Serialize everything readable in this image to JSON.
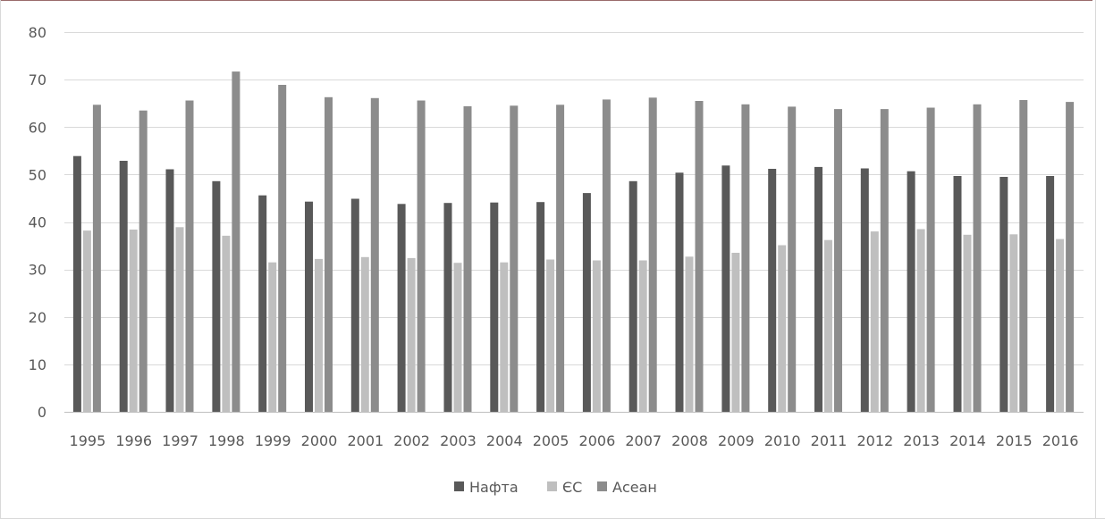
{
  "chart_data": {
    "type": "bar",
    "title": "",
    "xlabel": "",
    "ylabel": "",
    "ylim": [
      0,
      80
    ],
    "yticks": [
      0,
      10,
      20,
      30,
      40,
      50,
      60,
      70,
      80
    ],
    "grid": true,
    "legend_position": "bottom",
    "categories": [
      "1995",
      "1996",
      "1997",
      "1998",
      "1999",
      "2000",
      "2001",
      "2002",
      "2003",
      "2004",
      "2005",
      "2006",
      "2007",
      "2008",
      "2009",
      "2010",
      "2011",
      "2012",
      "2013",
      "2014",
      "2015",
      "2016"
    ],
    "series": [
      {
        "name": "Нафта",
        "color": "#595959",
        "values": [
          53.9,
          52.9,
          51.1,
          48.6,
          45.6,
          44.3,
          44.9,
          43.8,
          44.0,
          44.1,
          44.2,
          46.1,
          48.6,
          50.4,
          51.9,
          51.2,
          51.6,
          51.3,
          50.7,
          49.7,
          49.5,
          49.7
        ]
      },
      {
        "name": "ЄС",
        "color": "#bfbfbf",
        "values": [
          38.2,
          38.4,
          38.9,
          37.1,
          31.5,
          32.2,
          32.6,
          32.4,
          31.4,
          31.5,
          32.1,
          31.9,
          31.9,
          32.7,
          33.5,
          35.1,
          36.2,
          38.0,
          38.5,
          37.3,
          37.4,
          36.4
        ]
      },
      {
        "name": "Асеан",
        "color": "#8c8c8c",
        "values": [
          64.7,
          63.5,
          65.6,
          71.7,
          68.9,
          66.3,
          66.1,
          65.6,
          64.4,
          64.5,
          64.7,
          65.8,
          66.2,
          65.5,
          64.8,
          64.3,
          63.8,
          63.8,
          64.1,
          64.8,
          65.7,
          65.3
        ]
      }
    ]
  }
}
